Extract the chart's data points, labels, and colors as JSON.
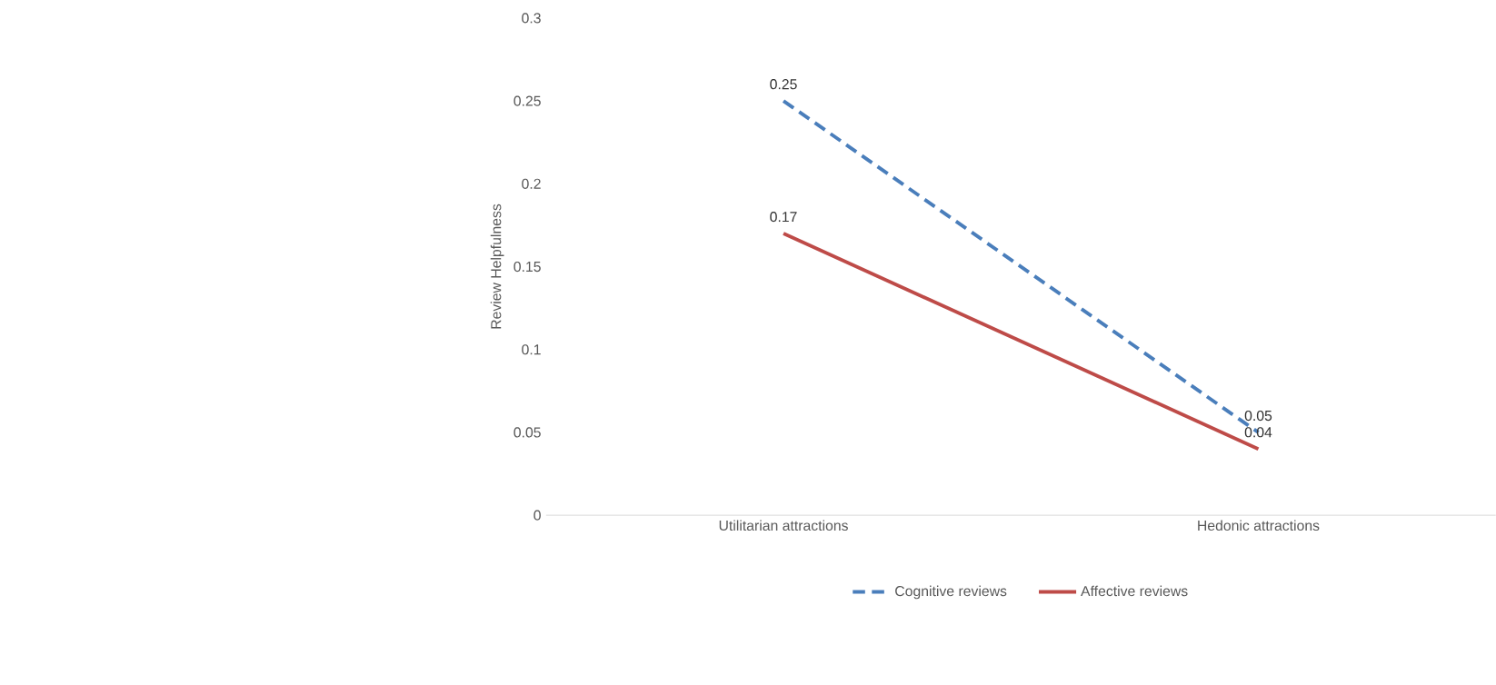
{
  "chart_data": {
    "type": "line",
    "ylabel": "Review Helpfulness",
    "categories": [
      "Utilitarian attractions",
      "Hedonic attractions"
    ],
    "series": [
      {
        "name": "Cognitive reviews",
        "color": "#4a7ebb",
        "values": [
          0.25,
          0.05
        ],
        "line_style": "dashed"
      },
      {
        "name": "Affective reviews",
        "color": "#be4b48",
        "values": [
          0.17,
          0.04
        ],
        "line_style": "solid"
      }
    ],
    "ylim": [
      0,
      0.3
    ],
    "yticks": [
      0,
      0.05,
      0.1,
      0.15,
      0.2,
      0.25,
      0.3
    ],
    "data_labels": true,
    "legend": "bottom",
    "grid": false,
    "marker": "none"
  }
}
